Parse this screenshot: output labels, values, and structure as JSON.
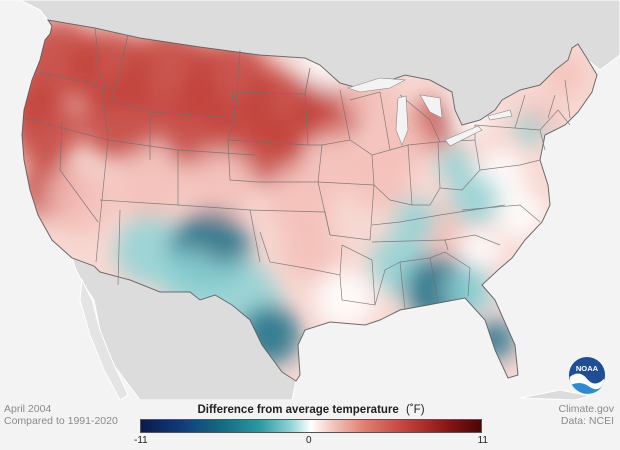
{
  "map": {
    "caption_date": "April 2004",
    "caption_baseline": "Compared to 1991-2020",
    "credit_site": "Climate.gov",
    "credit_data": "Data: NCEI",
    "logo_icon": "noaa-logo-icon",
    "colors": {
      "land_outside": "#dcdcdc",
      "ocean": "#f3f3f3",
      "warm_strong": "#c2413a",
      "warm_light": "#f3c0b8",
      "neutral": "#ffffff",
      "cool_light": "#8ed3d6",
      "cool_strong": "#166e86",
      "borders": "#6f6f6f"
    }
  },
  "legend": {
    "title": "Difference from average temperature",
    "unit": "(˚F)",
    "min_label": "-11",
    "mid_label": "0",
    "max_label": "11",
    "min": -11,
    "max": 11
  }
}
